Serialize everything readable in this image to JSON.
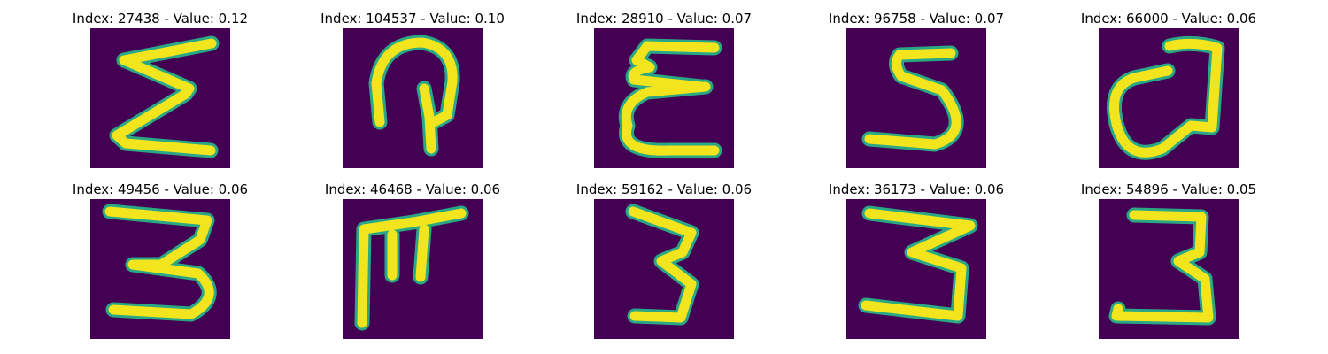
{
  "chart_data": {
    "type": "image-grid",
    "colormap": "viridis",
    "background_color": "#440154",
    "stroke_color": "#fde725",
    "edge_color": "#21918c",
    "panels": [
      {
        "title": "Index: 27438 - Value: 0.12",
        "index": 27438,
        "value": 0.12,
        "glyph": "sigma"
      },
      {
        "title": "Index: 104537 - Value: 0.10",
        "index": 104537,
        "value": 0.1,
        "glyph": "loop-hook"
      },
      {
        "title": "Index: 28910 - Value: 0.07",
        "index": 28910,
        "value": 0.07,
        "glyph": "e-curl"
      },
      {
        "title": "Index: 96758 - Value: 0.07",
        "index": 96758,
        "value": 0.07,
        "glyph": "five-s"
      },
      {
        "title": "Index: 66000 - Value: 0.06",
        "index": 66000,
        "value": 0.06,
        "glyph": "q"
      },
      {
        "title": "Index: 49456 - Value: 0.06",
        "index": 49456,
        "value": 0.06,
        "glyph": "three"
      },
      {
        "title": "Index: 46468 - Value: 0.06",
        "index": 46468,
        "value": 0.06,
        "glyph": "f-pi"
      },
      {
        "title": "Index: 59162 - Value: 0.06",
        "index": 59162,
        "value": 0.06,
        "glyph": "three-narrow"
      },
      {
        "title": "Index: 36173 - Value: 0.06",
        "index": 36173,
        "value": 0.06,
        "glyph": "three-zigzag"
      },
      {
        "title": "Index: 54896 - Value: 0.05",
        "index": 54896,
        "value": 0.05,
        "glyph": "three-open"
      }
    ]
  }
}
